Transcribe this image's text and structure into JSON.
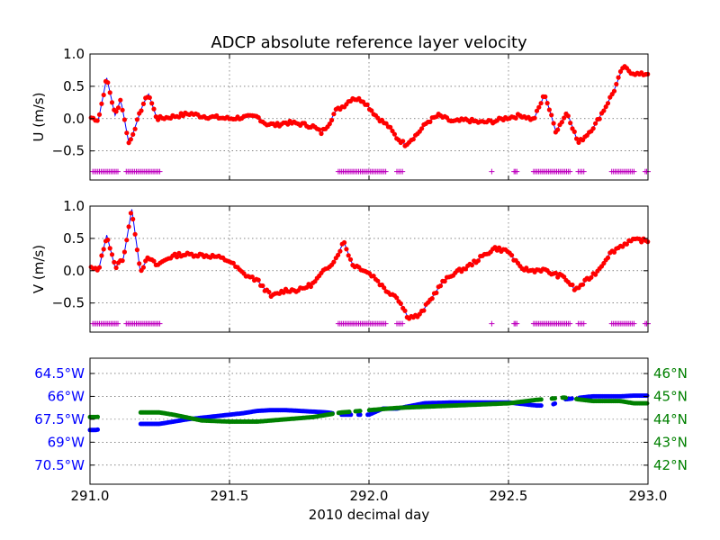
{
  "chart_data": {
    "title": "ADCP absolute reference layer velocity",
    "x_axis": {
      "label": "2010 decimal day",
      "range": [
        291.0,
        293.0
      ],
      "ticks": [
        291.0,
        291.5,
        292.0,
        292.5,
        293.0
      ],
      "tick_labels": [
        "291.0",
        "291.5",
        "292.0",
        "292.5",
        "293.0"
      ]
    },
    "grid": true,
    "colors": {
      "line": "#0000ff",
      "points": "#ff0000",
      "flags": "#bf00bf",
      "longitude": "#0000ff",
      "latitude": "#008000"
    },
    "panels": [
      {
        "id": "u",
        "type": "scatter",
        "ylabel": "U (m/s)",
        "ylim": [
          -0.95,
          1.0
        ],
        "yticks": [
          -0.5,
          0.0,
          0.5,
          1.0
        ],
        "ytick_labels": [
          "−0.5",
          "0.0",
          "0.5",
          "1.0"
        ],
        "flag_level": -0.82,
        "flag_ranges": [
          [
            291.01,
            291.1
          ],
          [
            291.13,
            291.25
          ],
          [
            291.89,
            292.06
          ],
          [
            292.1,
            292.12
          ],
          [
            292.44,
            292.44
          ],
          [
            292.52,
            292.53
          ],
          [
            292.59,
            292.72
          ],
          [
            292.75,
            292.77
          ],
          [
            292.87,
            292.95
          ],
          [
            292.99,
            293.0
          ]
        ],
        "trace": [
          [
            291.0,
            0.02
          ],
          [
            291.03,
            -0.02
          ],
          [
            291.06,
            0.63
          ],
          [
            291.09,
            0.05
          ],
          [
            291.11,
            0.3
          ],
          [
            291.14,
            -0.4
          ],
          [
            291.19,
            0.22
          ],
          [
            291.21,
            0.38
          ],
          [
            291.24,
            0.0
          ],
          [
            291.28,
            0.02
          ],
          [
            291.32,
            0.05
          ],
          [
            291.36,
            0.08
          ],
          [
            291.4,
            0.04
          ],
          [
            291.45,
            0.02
          ],
          [
            291.5,
            0.0
          ],
          [
            291.55,
            0.02
          ],
          [
            291.6,
            0.03
          ],
          [
            291.63,
            -0.08
          ],
          [
            291.67,
            -0.1
          ],
          [
            291.7,
            -0.06
          ],
          [
            291.75,
            -0.08
          ],
          [
            291.8,
            -0.12
          ],
          [
            291.83,
            -0.22
          ],
          [
            291.86,
            -0.05
          ],
          [
            291.88,
            0.12
          ],
          [
            291.91,
            0.2
          ],
          [
            291.94,
            0.32
          ],
          [
            291.98,
            0.28
          ],
          [
            292.03,
            0.02
          ],
          [
            292.07,
            -0.12
          ],
          [
            292.1,
            -0.3
          ],
          [
            292.13,
            -0.4
          ],
          [
            292.17,
            -0.25
          ],
          [
            292.21,
            -0.05
          ],
          [
            292.25,
            0.05
          ],
          [
            292.3,
            -0.05
          ],
          [
            292.35,
            -0.02
          ],
          [
            292.4,
            -0.06
          ],
          [
            292.45,
            -0.04
          ],
          [
            292.5,
            0.02
          ],
          [
            292.55,
            0.05
          ],
          [
            292.59,
            -0.02
          ],
          [
            292.63,
            0.38
          ],
          [
            292.67,
            -0.2
          ],
          [
            292.71,
            0.1
          ],
          [
            292.75,
            -0.38
          ],
          [
            292.78,
            -0.25
          ],
          [
            292.81,
            -0.1
          ],
          [
            292.85,
            0.2
          ],
          [
            292.88,
            0.45
          ],
          [
            292.91,
            0.8
          ],
          [
            292.94,
            0.72
          ],
          [
            292.97,
            0.68
          ],
          [
            293.0,
            0.7
          ]
        ]
      },
      {
        "id": "v",
        "type": "scatter",
        "ylabel": "V (m/s)",
        "ylim": [
          -0.95,
          1.0
        ],
        "yticks": [
          -0.5,
          0.0,
          0.5,
          1.0
        ],
        "ytick_labels": [
          "−0.5",
          "0.0",
          "0.5",
          "1.0"
        ],
        "flag_level": -0.82,
        "flag_ranges": [
          [
            291.01,
            291.1
          ],
          [
            291.13,
            291.25
          ],
          [
            291.89,
            292.06
          ],
          [
            292.1,
            292.12
          ],
          [
            292.44,
            292.44
          ],
          [
            292.52,
            292.53
          ],
          [
            292.59,
            292.72
          ],
          [
            292.75,
            292.77
          ],
          [
            292.87,
            292.95
          ],
          [
            292.99,
            293.0
          ]
        ],
        "trace": [
          [
            291.0,
            0.05
          ],
          [
            291.03,
            0.0
          ],
          [
            291.06,
            0.55
          ],
          [
            291.09,
            0.05
          ],
          [
            291.12,
            0.2
          ],
          [
            291.15,
            0.95
          ],
          [
            291.18,
            0.0
          ],
          [
            291.21,
            0.2
          ],
          [
            291.24,
            0.08
          ],
          [
            291.28,
            0.2
          ],
          [
            291.32,
            0.25
          ],
          [
            291.38,
            0.25
          ],
          [
            291.45,
            0.22
          ],
          [
            291.5,
            0.15
          ],
          [
            291.55,
            -0.05
          ],
          [
            291.6,
            -0.15
          ],
          [
            291.65,
            -0.4
          ],
          [
            291.7,
            -0.3
          ],
          [
            291.75,
            -0.3
          ],
          [
            291.8,
            -0.2
          ],
          [
            291.84,
            0.0
          ],
          [
            291.88,
            0.18
          ],
          [
            291.91,
            0.45
          ],
          [
            291.94,
            0.1
          ],
          [
            291.98,
            0.02
          ],
          [
            292.02,
            -0.1
          ],
          [
            292.06,
            -0.3
          ],
          [
            292.1,
            -0.4
          ],
          [
            292.14,
            -0.72
          ],
          [
            292.18,
            -0.7
          ],
          [
            292.22,
            -0.45
          ],
          [
            292.26,
            -0.2
          ],
          [
            292.3,
            -0.05
          ],
          [
            292.35,
            0.05
          ],
          [
            292.4,
            0.2
          ],
          [
            292.45,
            0.35
          ],
          [
            292.5,
            0.3
          ],
          [
            292.54,
            0.05
          ],
          [
            292.58,
            0.0
          ],
          [
            292.62,
            0.02
          ],
          [
            292.66,
            -0.05
          ],
          [
            292.7,
            -0.1
          ],
          [
            292.74,
            -0.3
          ],
          [
            292.78,
            -0.15
          ],
          [
            292.82,
            0.0
          ],
          [
            292.86,
            0.25
          ],
          [
            292.89,
            0.35
          ],
          [
            292.93,
            0.45
          ],
          [
            292.97,
            0.48
          ],
          [
            293.0,
            0.45
          ]
        ]
      },
      {
        "id": "position",
        "type": "scatter",
        "yticks_left": [
          -64.5,
          -66.0,
          -67.5,
          -69.0,
          -70.5
        ],
        "ytick_labels_left": [
          "64.5°W",
          "66°W",
          "67.5°W",
          "69°W",
          "70.5°W"
        ],
        "ylim_left": [
          -71.75,
          -63.5
        ],
        "yticks_right": [
          46,
          45,
          44,
          43,
          42
        ],
        "ytick_labels_right": [
          "46°N",
          "45°N",
          "44°N",
          "43°N",
          "42°N"
        ],
        "ylim_right": [
          41.17,
          46.67
        ],
        "longitude": [
          [
            291.0,
            -68.2
          ],
          [
            291.02,
            -68.2
          ],
          [
            291.18,
            -67.8
          ],
          [
            291.25,
            -67.8
          ],
          [
            291.3,
            -67.65
          ],
          [
            291.35,
            -67.5
          ],
          [
            291.45,
            -67.3
          ],
          [
            291.55,
            -67.1
          ],
          [
            291.6,
            -66.95
          ],
          [
            291.65,
            -66.9
          ],
          [
            291.7,
            -66.9
          ],
          [
            291.85,
            -67.05
          ],
          [
            291.9,
            -67.2
          ],
          [
            292.0,
            -67.2
          ],
          [
            292.05,
            -66.8
          ],
          [
            292.1,
            -66.8
          ],
          [
            292.2,
            -66.45
          ],
          [
            292.3,
            -66.4
          ],
          [
            292.5,
            -66.4
          ],
          [
            292.6,
            -66.6
          ],
          [
            292.65,
            -66.6
          ],
          [
            292.7,
            -66.2
          ],
          [
            292.8,
            -66.0
          ],
          [
            292.9,
            -66.0
          ],
          [
            292.95,
            -65.95
          ],
          [
            293.0,
            -65.95
          ]
        ],
        "latitude": [
          [
            291.0,
            44.1
          ],
          [
            291.02,
            44.1
          ],
          [
            291.18,
            44.3
          ],
          [
            291.25,
            44.3
          ],
          [
            291.3,
            44.2
          ],
          [
            291.4,
            43.95
          ],
          [
            291.5,
            43.9
          ],
          [
            291.6,
            43.9
          ],
          [
            291.7,
            44.0
          ],
          [
            291.8,
            44.1
          ],
          [
            291.9,
            44.3
          ],
          [
            292.0,
            44.4
          ],
          [
            292.1,
            44.5
          ],
          [
            292.3,
            44.6
          ],
          [
            292.5,
            44.7
          ],
          [
            292.6,
            44.85
          ],
          [
            292.7,
            44.95
          ],
          [
            292.8,
            44.8
          ],
          [
            292.9,
            44.8
          ],
          [
            292.95,
            44.7
          ],
          [
            293.0,
            44.7
          ]
        ]
      }
    ]
  }
}
